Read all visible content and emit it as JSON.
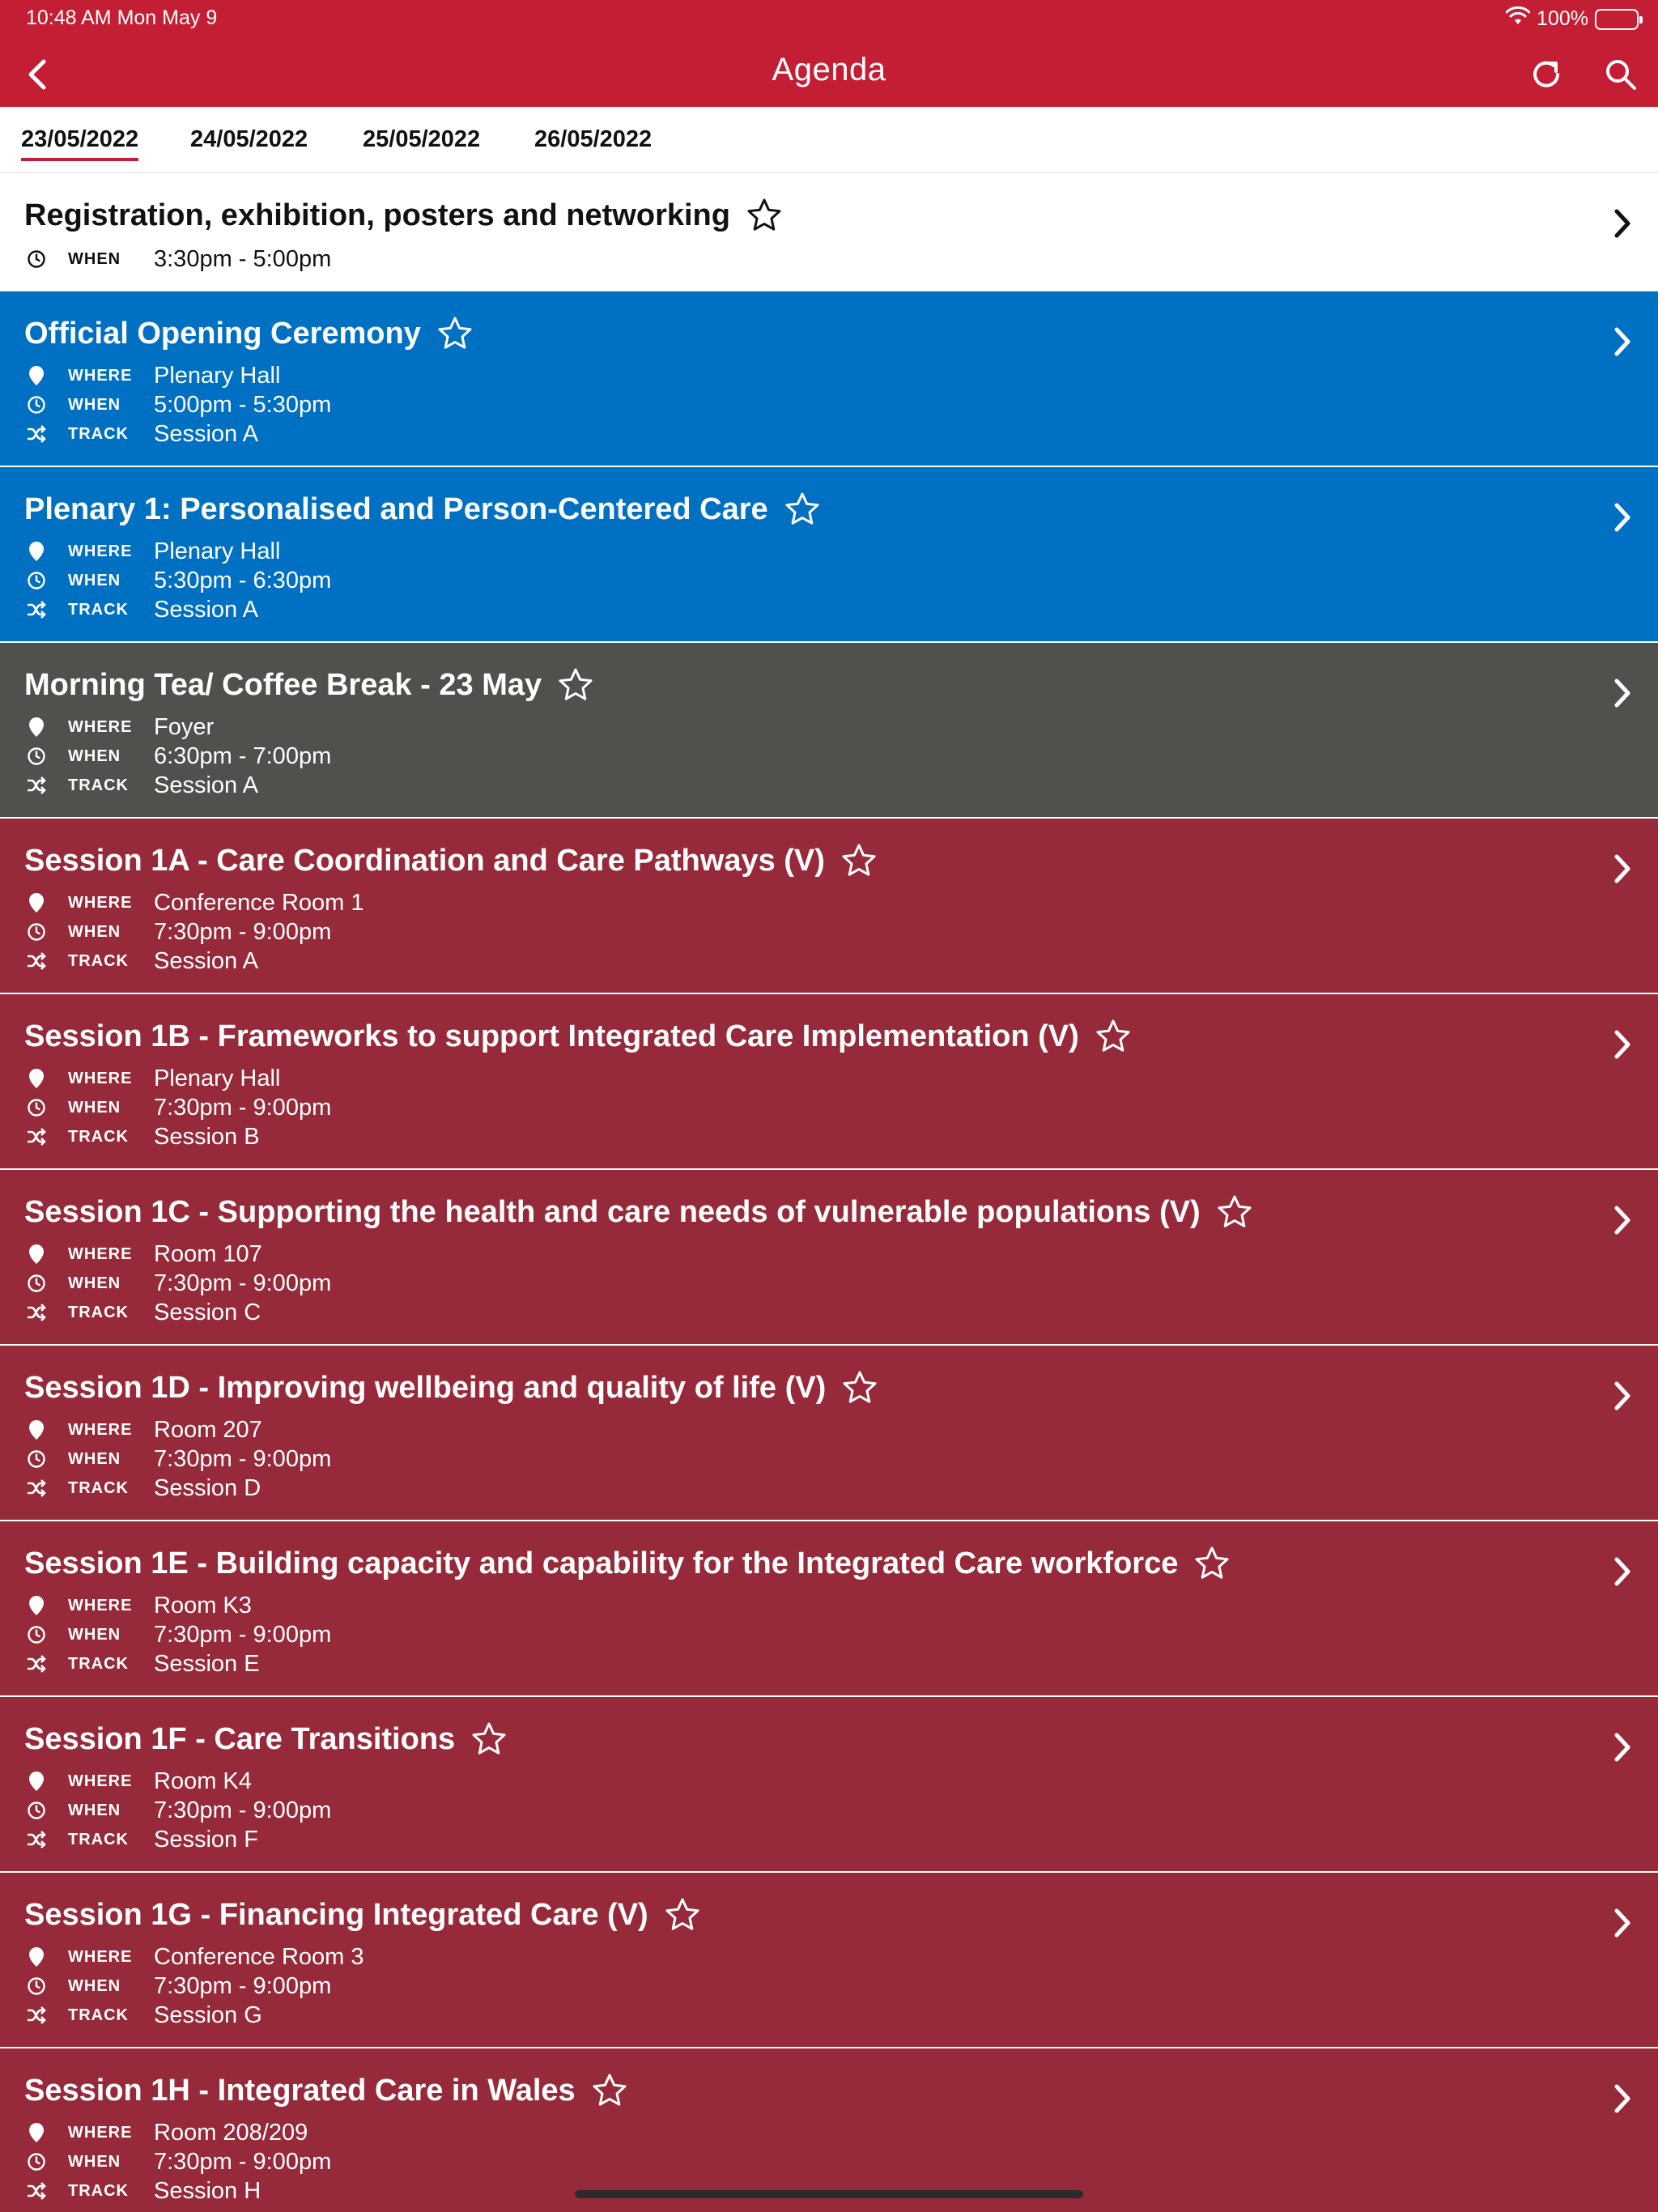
{
  "status": {
    "time": "10:48 AM   Mon May 9",
    "battery": "100%"
  },
  "nav": {
    "title": "Agenda",
    "back_icon": "chevron-left-icon",
    "refresh_icon": "refresh-icon",
    "search_icon": "search-icon"
  },
  "tabs": [
    {
      "label": "23/05/2022",
      "active": true
    },
    {
      "label": "24/05/2022",
      "active": false
    },
    {
      "label": "25/05/2022",
      "active": false
    },
    {
      "label": "26/05/2022",
      "active": false
    }
  ],
  "labels": {
    "where": "WHERE",
    "when": "WHEN",
    "track": "TRACK"
  },
  "colors": {
    "header": "#c41e34",
    "plenary": "#0070c3",
    "break": "#50504d",
    "session": "#962a3a"
  },
  "sessions": [
    {
      "title": "Registration, exhibition, posters and networking",
      "when": "3:30pm - 5:00pm",
      "color": "white"
    },
    {
      "title": "Official Opening Ceremony",
      "where": "Plenary Hall",
      "when": "5:00pm - 5:30pm",
      "track": "Session A",
      "color": "blue"
    },
    {
      "title": "Plenary 1: Personalised and Person-Centered Care",
      "where": "Plenary Hall",
      "when": "5:30pm - 6:30pm",
      "track": "Session A",
      "color": "blue"
    },
    {
      "title": "Morning Tea/ Coffee Break - 23 May",
      "where": "Foyer",
      "when": "6:30pm - 7:00pm",
      "track": "Session A",
      "color": "gray"
    },
    {
      "title": "Session 1A - Care Coordination and Care Pathways (V)",
      "where": "Conference Room 1",
      "when": "7:30pm - 9:00pm",
      "track": "Session A",
      "color": "red"
    },
    {
      "title": "Session 1B - Frameworks to support Integrated Care Implementation (V)",
      "where": "Plenary Hall",
      "when": "7:30pm - 9:00pm",
      "track": "Session B",
      "color": "red"
    },
    {
      "title": "Session 1C - Supporting the health and care needs of vulnerable populations (V)",
      "where": "Room 107",
      "when": "7:30pm - 9:00pm",
      "track": "Session C",
      "color": "red"
    },
    {
      "title": "Session 1D - Improving wellbeing and quality of life (V)",
      "where": "Room 207",
      "when": "7:30pm - 9:00pm",
      "track": "Session D",
      "color": "red"
    },
    {
      "title": "Session 1E - Building capacity and capability for the Integrated Care workforce",
      "where": "Room K3",
      "when": "7:30pm - 9:00pm",
      "track": "Session E",
      "color": "red"
    },
    {
      "title": "Session 1F - Care Transitions",
      "where": "Room K4",
      "when": "7:30pm - 9:00pm",
      "track": "Session F",
      "color": "red"
    },
    {
      "title": "Session 1G - Financing Integrated Care (V)",
      "where": "Conference Room 3",
      "when": "7:30pm - 9:00pm",
      "track": "Session G",
      "color": "red"
    },
    {
      "title": "Session 1H - Integrated Care in Wales",
      "where": "Room 208/209",
      "when": "7:30pm - 9:00pm",
      "track": "Session H",
      "color": "red"
    }
  ]
}
